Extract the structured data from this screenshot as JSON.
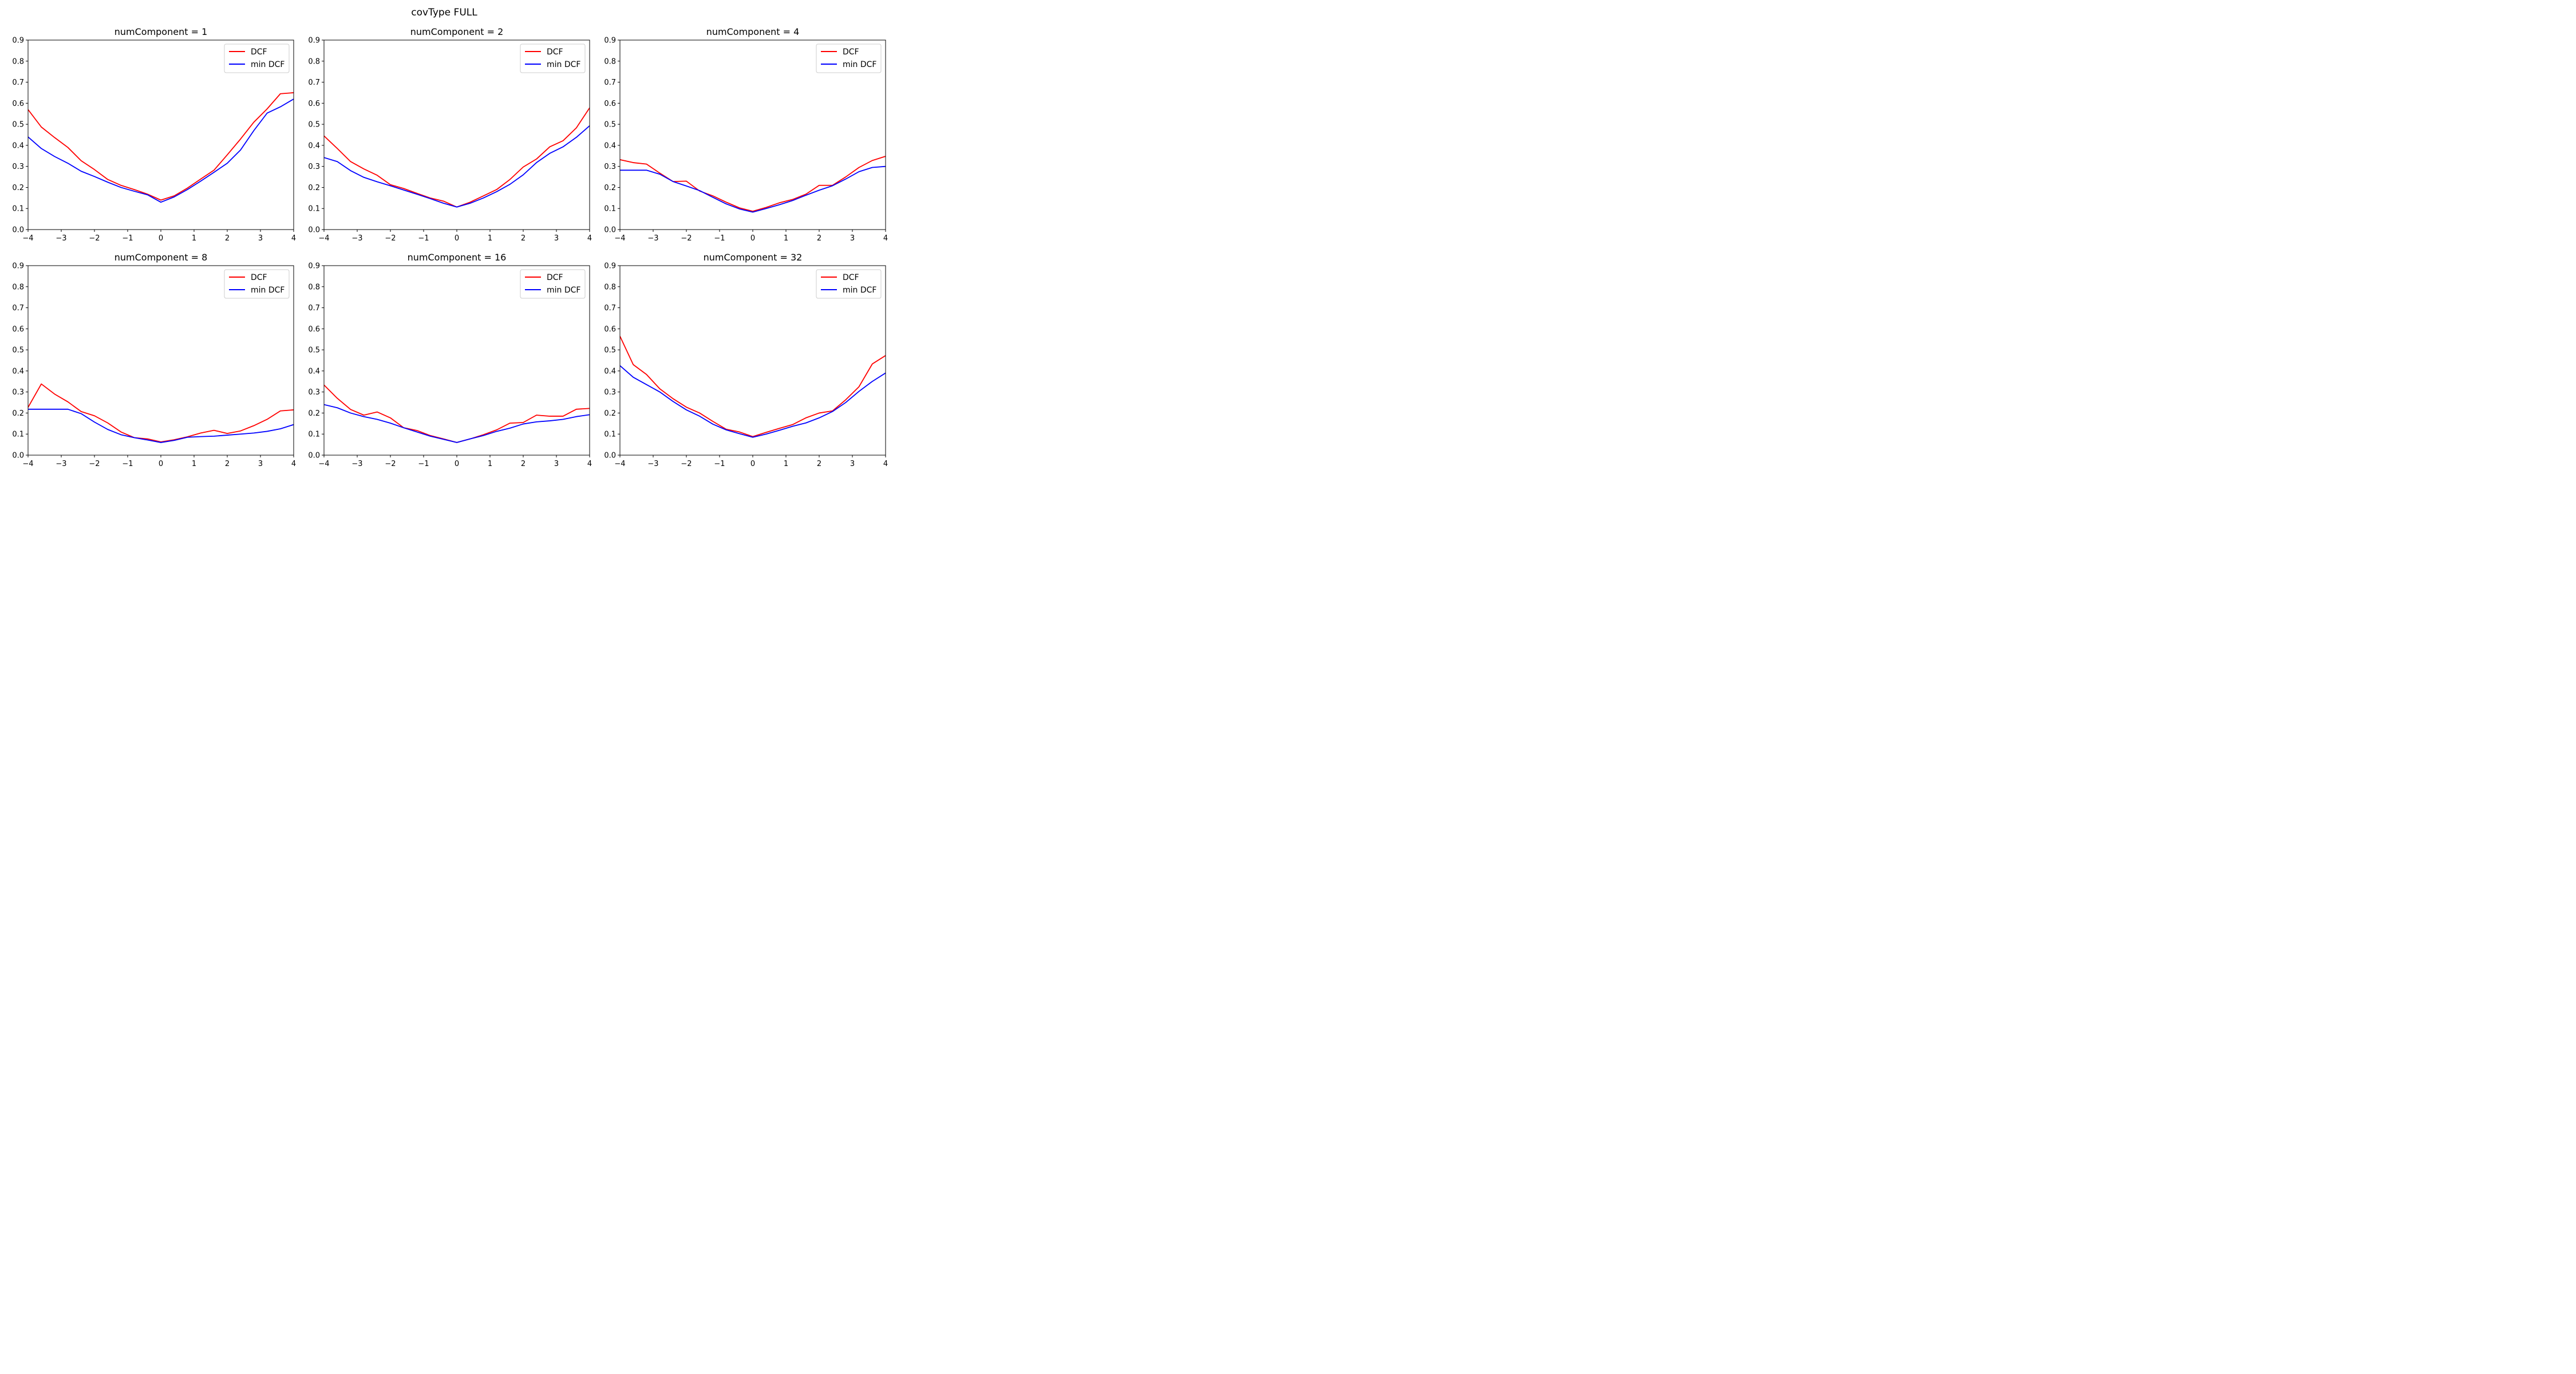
{
  "suptitle": "covType FULL",
  "legend_labels": [
    "DCF",
    "min DCF"
  ],
  "colors": {
    "dcf": "#ff0000",
    "min_dcf": "#0000ff"
  },
  "chart_data": [
    {
      "type": "line",
      "title": "numComponent = 1",
      "xlim": [
        -4,
        4
      ],
      "ylim": [
        0,
        0.9
      ],
      "xticks": [
        "−4",
        "−3",
        "−2",
        "−1",
        "0",
        "1",
        "2",
        "3",
        "4"
      ],
      "yticks": [
        "0.0",
        "0.1",
        "0.2",
        "0.3",
        "0.4",
        "0.5",
        "0.6",
        "0.7",
        "0.8",
        "0.9"
      ],
      "legend": "top-right",
      "grid": false,
      "x": [
        -4,
        -3.6,
        -3.2,
        -2.8,
        -2.4,
        -2,
        -1.6,
        -1.2,
        -0.8,
        -0.4,
        0,
        0.4,
        0.8,
        1.2,
        1.6,
        2,
        2.4,
        2.8,
        3.2,
        3.6,
        4
      ],
      "series": [
        {
          "name": "DCF",
          "values": [
            0.57,
            0.487,
            0.437,
            0.39,
            0.327,
            0.285,
            0.238,
            0.21,
            0.19,
            0.168,
            0.14,
            0.16,
            0.197,
            0.24,
            0.282,
            0.355,
            0.43,
            0.51,
            0.573,
            0.645,
            0.65
          ]
        },
        {
          "name": "min DCF",
          "values": [
            0.44,
            0.385,
            0.347,
            0.315,
            0.277,
            0.252,
            0.225,
            0.2,
            0.182,
            0.165,
            0.13,
            0.155,
            0.19,
            0.23,
            0.272,
            0.315,
            0.378,
            0.47,
            0.553,
            0.583,
            0.62
          ]
        }
      ]
    },
    {
      "type": "line",
      "title": "numComponent = 2",
      "xlim": [
        -4,
        4
      ],
      "ylim": [
        0,
        0.9
      ],
      "xticks": [
        "−4",
        "−3",
        "−2",
        "−1",
        "0",
        "1",
        "2",
        "3",
        "4"
      ],
      "yticks": [
        "0.0",
        "0.1",
        "0.2",
        "0.3",
        "0.4",
        "0.5",
        "0.6",
        "0.7",
        "0.8",
        "0.9"
      ],
      "legend": "top-right",
      "grid": false,
      "x": [
        -4,
        -3.6,
        -3.2,
        -2.8,
        -2.4,
        -2,
        -1.6,
        -1.2,
        -0.8,
        -0.4,
        0,
        0.4,
        0.8,
        1.2,
        1.6,
        2,
        2.4,
        2.8,
        3.2,
        3.6,
        4
      ],
      "series": [
        {
          "name": "DCF",
          "values": [
            0.445,
            0.385,
            0.323,
            0.288,
            0.258,
            0.213,
            0.195,
            0.172,
            0.15,
            0.135,
            0.107,
            0.13,
            0.16,
            0.19,
            0.238,
            0.297,
            0.335,
            0.393,
            0.422,
            0.483,
            0.578
          ]
        },
        {
          "name": "min DCF",
          "values": [
            0.342,
            0.323,
            0.28,
            0.248,
            0.227,
            0.208,
            0.188,
            0.168,
            0.147,
            0.125,
            0.107,
            0.125,
            0.15,
            0.18,
            0.215,
            0.26,
            0.318,
            0.362,
            0.393,
            0.438,
            0.493
          ]
        }
      ]
    },
    {
      "type": "line",
      "title": "numComponent = 4",
      "xlim": [
        -4,
        4
      ],
      "ylim": [
        0,
        0.9
      ],
      "xticks": [
        "−4",
        "−3",
        "−2",
        "−1",
        "0",
        "1",
        "2",
        "3",
        "4"
      ],
      "yticks": [
        "0.0",
        "0.1",
        "0.2",
        "0.3",
        "0.4",
        "0.5",
        "0.6",
        "0.7",
        "0.8",
        "0.9"
      ],
      "legend": "top-right",
      "grid": false,
      "x": [
        -4,
        -3.6,
        -3.2,
        -2.8,
        -2.4,
        -2,
        -1.6,
        -1.2,
        -0.8,
        -0.4,
        0,
        0.4,
        0.8,
        1.2,
        1.6,
        2,
        2.4,
        2.8,
        3.2,
        3.6,
        4
      ],
      "series": [
        {
          "name": "DCF",
          "values": [
            0.332,
            0.318,
            0.311,
            0.268,
            0.228,
            0.23,
            0.183,
            0.16,
            0.13,
            0.103,
            0.087,
            0.105,
            0.127,
            0.143,
            0.168,
            0.21,
            0.21,
            0.25,
            0.295,
            0.328,
            0.348
          ]
        },
        {
          "name": "min DCF",
          "values": [
            0.282,
            0.282,
            0.282,
            0.263,
            0.228,
            0.207,
            0.185,
            0.153,
            0.122,
            0.098,
            0.083,
            0.1,
            0.118,
            0.138,
            0.163,
            0.187,
            0.208,
            0.24,
            0.275,
            0.295,
            0.3
          ]
        }
      ]
    },
    {
      "type": "line",
      "title": "numComponent = 8",
      "xlim": [
        -4,
        4
      ],
      "ylim": [
        0,
        0.9
      ],
      "xticks": [
        "−4",
        "−3",
        "−2",
        "−1",
        "0",
        "1",
        "2",
        "3",
        "4"
      ],
      "yticks": [
        "0.0",
        "0.1",
        "0.2",
        "0.3",
        "0.4",
        "0.5",
        "0.6",
        "0.7",
        "0.8",
        "0.9"
      ],
      "legend": "top-right",
      "grid": false,
      "x": [
        -4,
        -3.6,
        -3.2,
        -2.8,
        -2.4,
        -2,
        -1.6,
        -1.2,
        -0.8,
        -0.4,
        0,
        0.4,
        0.8,
        1.2,
        1.6,
        2,
        2.4,
        2.8,
        3.2,
        3.6,
        4
      ],
      "series": [
        {
          "name": "DCF",
          "values": [
            0.227,
            0.338,
            0.29,
            0.253,
            0.207,
            0.187,
            0.153,
            0.11,
            0.083,
            0.077,
            0.063,
            0.073,
            0.087,
            0.105,
            0.118,
            0.103,
            0.115,
            0.14,
            0.17,
            0.21,
            0.215
          ]
        },
        {
          "name": "min DCF",
          "values": [
            0.218,
            0.218,
            0.218,
            0.218,
            0.197,
            0.157,
            0.122,
            0.097,
            0.083,
            0.072,
            0.06,
            0.07,
            0.085,
            0.088,
            0.09,
            0.095,
            0.1,
            0.105,
            0.113,
            0.125,
            0.145
          ]
        }
      ]
    },
    {
      "type": "line",
      "title": "numComponent = 16",
      "xlim": [
        -4,
        4
      ],
      "ylim": [
        0,
        0.9
      ],
      "xticks": [
        "−4",
        "−3",
        "−2",
        "−1",
        "0",
        "1",
        "2",
        "3",
        "4"
      ],
      "yticks": [
        "0.0",
        "0.1",
        "0.2",
        "0.3",
        "0.4",
        "0.5",
        "0.6",
        "0.7",
        "0.8",
        "0.9"
      ],
      "legend": "top-right",
      "grid": false,
      "x": [
        -4,
        -3.6,
        -3.2,
        -2.8,
        -2.4,
        -2,
        -1.6,
        -1.2,
        -0.8,
        -0.4,
        0,
        0.4,
        0.8,
        1.2,
        1.6,
        2,
        2.4,
        2.8,
        3.2,
        3.6,
        4
      ],
      "series": [
        {
          "name": "DCF",
          "values": [
            0.333,
            0.27,
            0.217,
            0.19,
            0.205,
            0.177,
            0.13,
            0.117,
            0.093,
            0.077,
            0.06,
            0.077,
            0.097,
            0.12,
            0.152,
            0.155,
            0.19,
            0.185,
            0.185,
            0.218,
            0.222
          ]
        },
        {
          "name": "min DCF",
          "values": [
            0.24,
            0.225,
            0.2,
            0.183,
            0.17,
            0.152,
            0.13,
            0.11,
            0.09,
            0.075,
            0.06,
            0.077,
            0.093,
            0.113,
            0.128,
            0.148,
            0.158,
            0.163,
            0.17,
            0.183,
            0.192
          ]
        }
      ]
    },
    {
      "type": "line",
      "title": "numComponent = 32",
      "xlim": [
        -4,
        4
      ],
      "ylim": [
        0,
        0.9
      ],
      "xticks": [
        "−4",
        "−3",
        "−2",
        "−1",
        "0",
        "1",
        "2",
        "3",
        "4"
      ],
      "yticks": [
        "0.0",
        "0.1",
        "0.2",
        "0.3",
        "0.4",
        "0.5",
        "0.6",
        "0.7",
        "0.8",
        "0.9"
      ],
      "legend": "top-right",
      "grid": false,
      "x": [
        -4,
        -3.6,
        -3.2,
        -2.8,
        -2.4,
        -2,
        -1.6,
        -1.2,
        -0.8,
        -0.4,
        0,
        0.4,
        0.8,
        1.2,
        1.6,
        2,
        2.4,
        2.8,
        3.2,
        3.6,
        4
      ],
      "series": [
        {
          "name": "DCF",
          "values": [
            0.565,
            0.43,
            0.383,
            0.315,
            0.268,
            0.228,
            0.2,
            0.16,
            0.123,
            0.11,
            0.088,
            0.108,
            0.127,
            0.145,
            0.177,
            0.2,
            0.21,
            0.263,
            0.325,
            0.433,
            0.473
          ]
        },
        {
          "name": "min DCF",
          "values": [
            0.425,
            0.37,
            0.335,
            0.3,
            0.255,
            0.215,
            0.185,
            0.147,
            0.12,
            0.102,
            0.085,
            0.1,
            0.118,
            0.137,
            0.153,
            0.177,
            0.207,
            0.25,
            0.303,
            0.35,
            0.39
          ]
        }
      ]
    }
  ]
}
